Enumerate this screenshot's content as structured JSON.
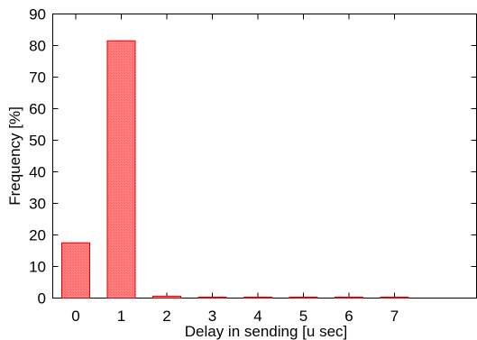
{
  "chart_data": {
    "type": "bar",
    "categories": [
      "0",
      "1",
      "2",
      "3",
      "4",
      "5",
      "6",
      "7"
    ],
    "values": [
      17.5,
      81.5,
      0.6,
      0.1,
      0.1,
      0.1,
      0.1,
      0.1
    ],
    "title": "",
    "xlabel": "Delay in sending [u sec]",
    "ylabel": "Frequency [%]",
    "ylim": [
      0,
      90
    ],
    "yticks": [
      "0",
      "10",
      "20",
      "30",
      "40",
      "50",
      "60",
      "70",
      "80",
      "90"
    ],
    "grid": false,
    "bar_color": "#ff7f7f",
    "bar_edge_color": "#e60000"
  }
}
